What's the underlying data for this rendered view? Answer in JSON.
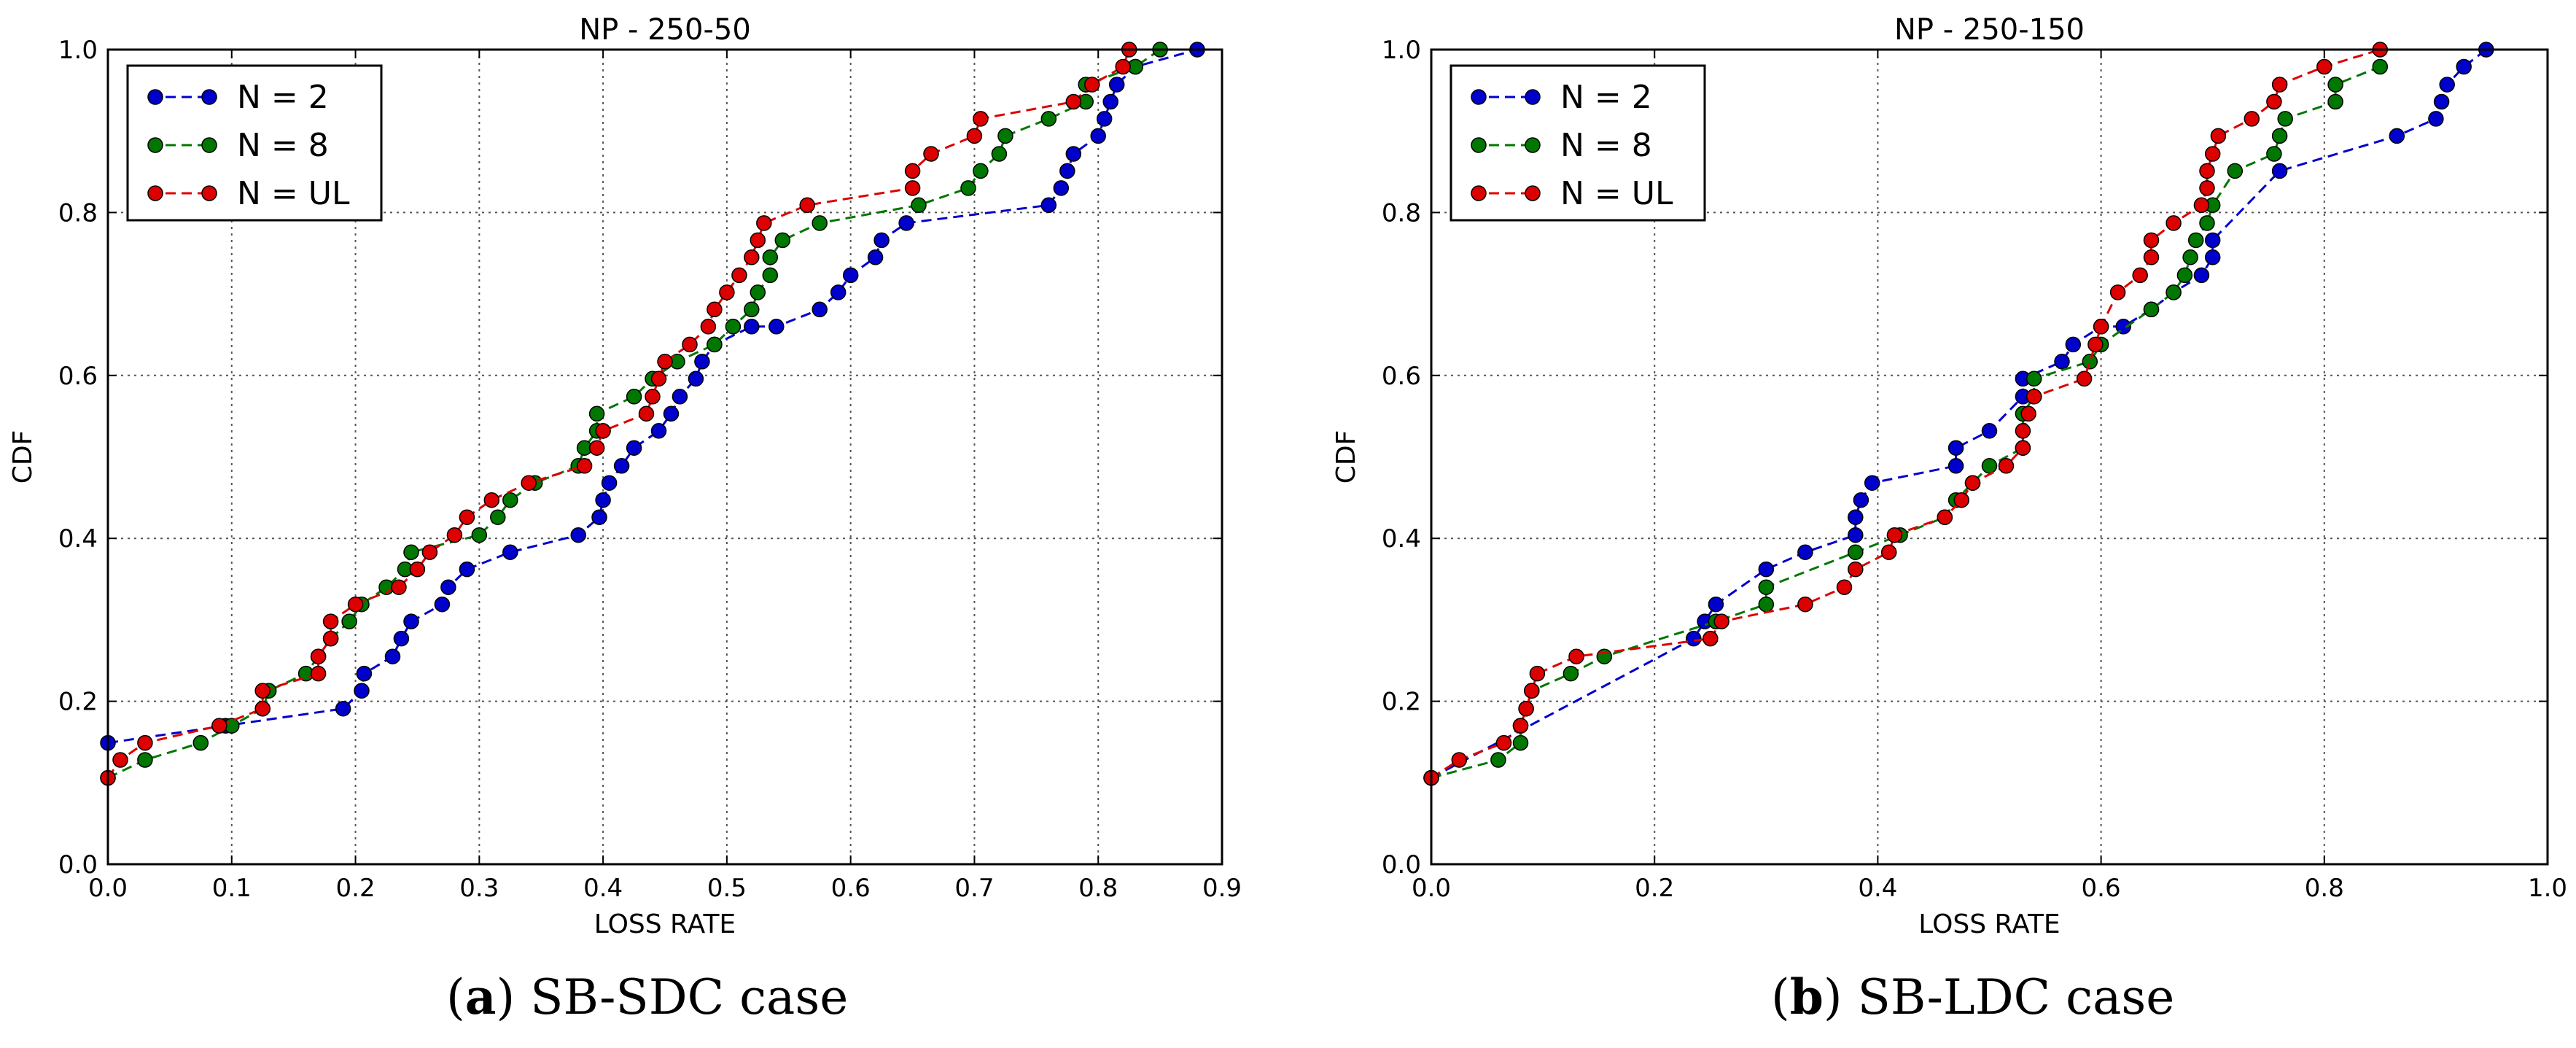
{
  "chart_data": [
    {
      "type": "line",
      "title": "NP - 250-50",
      "xlabel": "LOSS RATE",
      "ylabel": "CDF",
      "xlim": [
        0,
        0.9
      ],
      "ylim": [
        0,
        1.0
      ],
      "xticks": [
        0,
        0.1,
        0.2,
        0.3,
        0.4,
        0.5,
        0.6,
        0.7,
        0.8,
        0.9
      ],
      "yticks": [
        0,
        0.2,
        0.4,
        0.6,
        0.8,
        1.0
      ],
      "xtick_labels": [
        "0.0",
        "0.1",
        "0.2",
        "0.3",
        "0.4",
        "0.5",
        "0.6",
        "0.7",
        "0.8",
        "0.9"
      ],
      "ytick_labels": [
        "0.0",
        "0.2",
        "0.4",
        "0.6",
        "0.8",
        "1.0"
      ],
      "grid": true,
      "legend_position": "top-left",
      "caption_label": "(a)",
      "caption_text": "SB-SDC case",
      "series": [
        {
          "name": "N = 2",
          "color": "#0000cc",
          "points": [
            [
              0.0,
              0.149
            ],
            [
              0.095,
              0.17
            ],
            [
              0.19,
              0.191
            ],
            [
              0.205,
              0.213
            ],
            [
              0.207,
              0.234
            ],
            [
              0.23,
              0.255
            ],
            [
              0.237,
              0.277
            ],
            [
              0.245,
              0.298
            ],
            [
              0.27,
              0.319
            ],
            [
              0.275,
              0.34
            ],
            [
              0.29,
              0.362
            ],
            [
              0.325,
              0.383
            ],
            [
              0.38,
              0.404
            ],
            [
              0.397,
              0.426
            ],
            [
              0.4,
              0.447
            ],
            [
              0.405,
              0.468
            ],
            [
              0.415,
              0.489
            ],
            [
              0.425,
              0.511
            ],
            [
              0.445,
              0.532
            ],
            [
              0.455,
              0.553
            ],
            [
              0.462,
              0.574
            ],
            [
              0.475,
              0.596
            ],
            [
              0.48,
              0.617
            ],
            [
              0.49,
              0.638
            ],
            [
              0.52,
              0.66
            ],
            [
              0.54,
              0.66
            ],
            [
              0.575,
              0.681
            ],
            [
              0.59,
              0.702
            ],
            [
              0.6,
              0.723
            ],
            [
              0.62,
              0.745
            ],
            [
              0.625,
              0.766
            ],
            [
              0.645,
              0.787
            ],
            [
              0.76,
              0.809
            ],
            [
              0.77,
              0.83
            ],
            [
              0.775,
              0.851
            ],
            [
              0.78,
              0.872
            ],
            [
              0.8,
              0.894
            ],
            [
              0.805,
              0.915
            ],
            [
              0.81,
              0.936
            ],
            [
              0.815,
              0.957
            ],
            [
              0.83,
              0.979
            ],
            [
              0.88,
              1.0
            ]
          ]
        },
        {
          "name": "N = 8",
          "color": "#007700",
          "points": [
            [
              0.0,
              0.106
            ],
            [
              0.03,
              0.128
            ],
            [
              0.075,
              0.149
            ],
            [
              0.1,
              0.17
            ],
            [
              0.125,
              0.191
            ],
            [
              0.13,
              0.213
            ],
            [
              0.16,
              0.234
            ],
            [
              0.17,
              0.255
            ],
            [
              0.18,
              0.277
            ],
            [
              0.195,
              0.298
            ],
            [
              0.205,
              0.319
            ],
            [
              0.225,
              0.34
            ],
            [
              0.24,
              0.362
            ],
            [
              0.245,
              0.383
            ],
            [
              0.3,
              0.404
            ],
            [
              0.315,
              0.426
            ],
            [
              0.325,
              0.447
            ],
            [
              0.345,
              0.468
            ],
            [
              0.38,
              0.489
            ],
            [
              0.385,
              0.511
            ],
            [
              0.395,
              0.532
            ],
            [
              0.395,
              0.553
            ],
            [
              0.425,
              0.574
            ],
            [
              0.44,
              0.596
            ],
            [
              0.46,
              0.617
            ],
            [
              0.49,
              0.638
            ],
            [
              0.505,
              0.66
            ],
            [
              0.52,
              0.681
            ],
            [
              0.525,
              0.702
            ],
            [
              0.535,
              0.723
            ],
            [
              0.535,
              0.745
            ],
            [
              0.545,
              0.766
            ],
            [
              0.575,
              0.787
            ],
            [
              0.655,
              0.809
            ],
            [
              0.695,
              0.83
            ],
            [
              0.705,
              0.851
            ],
            [
              0.72,
              0.872
            ],
            [
              0.725,
              0.894
            ],
            [
              0.76,
              0.915
            ],
            [
              0.79,
              0.936
            ],
            [
              0.79,
              0.957
            ],
            [
              0.83,
              0.979
            ],
            [
              0.85,
              1.0
            ]
          ]
        },
        {
          "name": "N = UL",
          "color": "#dd0000",
          "points": [
            [
              0.0,
              0.106
            ],
            [
              0.01,
              0.128
            ],
            [
              0.03,
              0.149
            ],
            [
              0.09,
              0.17
            ],
            [
              0.125,
              0.191
            ],
            [
              0.125,
              0.213
            ],
            [
              0.17,
              0.234
            ],
            [
              0.17,
              0.255
            ],
            [
              0.18,
              0.277
            ],
            [
              0.18,
              0.298
            ],
            [
              0.2,
              0.319
            ],
            [
              0.235,
              0.34
            ],
            [
              0.25,
              0.362
            ],
            [
              0.26,
              0.383
            ],
            [
              0.28,
              0.404
            ],
            [
              0.29,
              0.426
            ],
            [
              0.31,
              0.447
            ],
            [
              0.34,
              0.468
            ],
            [
              0.385,
              0.489
            ],
            [
              0.395,
              0.511
            ],
            [
              0.4,
              0.532
            ],
            [
              0.435,
              0.553
            ],
            [
              0.44,
              0.574
            ],
            [
              0.445,
              0.596
            ],
            [
              0.45,
              0.617
            ],
            [
              0.47,
              0.638
            ],
            [
              0.485,
              0.66
            ],
            [
              0.49,
              0.681
            ],
            [
              0.5,
              0.702
            ],
            [
              0.51,
              0.723
            ],
            [
              0.52,
              0.745
            ],
            [
              0.525,
              0.766
            ],
            [
              0.53,
              0.787
            ],
            [
              0.565,
              0.809
            ],
            [
              0.65,
              0.83
            ],
            [
              0.65,
              0.851
            ],
            [
              0.665,
              0.872
            ],
            [
              0.7,
              0.894
            ],
            [
              0.705,
              0.915
            ],
            [
              0.78,
              0.936
            ],
            [
              0.795,
              0.957
            ],
            [
              0.82,
              0.979
            ],
            [
              0.825,
              1.0
            ]
          ]
        }
      ]
    },
    {
      "type": "line",
      "title": "NP - 250-150",
      "xlabel": "LOSS RATE",
      "ylabel": "CDF",
      "xlim": [
        0,
        1.0
      ],
      "ylim": [
        0,
        1.0
      ],
      "xticks": [
        0,
        0.2,
        0.4,
        0.6,
        0.8,
        1.0
      ],
      "yticks": [
        0,
        0.2,
        0.4,
        0.6,
        0.8,
        1.0
      ],
      "xtick_labels": [
        "0.0",
        "0.2",
        "0.4",
        "0.6",
        "0.8",
        "1.0"
      ],
      "ytick_labels": [
        "0.0",
        "0.2",
        "0.4",
        "0.6",
        "0.8",
        "1.0"
      ],
      "grid": true,
      "legend_position": "top-left",
      "caption_label": "(b)",
      "caption_text": "SB-LDC case",
      "series": [
        {
          "name": "N = 2",
          "color": "#0000cc",
          "points": [
            [
              0.0,
              0.106
            ],
            [
              0.235,
              0.277
            ],
            [
              0.245,
              0.298
            ],
            [
              0.255,
              0.319
            ],
            [
              0.3,
              0.362
            ],
            [
              0.335,
              0.383
            ],
            [
              0.38,
              0.404
            ],
            [
              0.38,
              0.426
            ],
            [
              0.385,
              0.447
            ],
            [
              0.395,
              0.468
            ],
            [
              0.47,
              0.489
            ],
            [
              0.47,
              0.511
            ],
            [
              0.5,
              0.532
            ],
            [
              0.53,
              0.574
            ],
            [
              0.53,
              0.596
            ],
            [
              0.565,
              0.617
            ],
            [
              0.575,
              0.638
            ],
            [
              0.6,
              0.66
            ],
            [
              0.62,
              0.66
            ],
            [
              0.645,
              0.681
            ],
            [
              0.665,
              0.702
            ],
            [
              0.69,
              0.723
            ],
            [
              0.7,
              0.745
            ],
            [
              0.7,
              0.766
            ],
            [
              0.76,
              0.851
            ],
            [
              0.865,
              0.894
            ],
            [
              0.9,
              0.915
            ],
            [
              0.905,
              0.936
            ],
            [
              0.91,
              0.957
            ],
            [
              0.925,
              0.979
            ],
            [
              0.945,
              1.0
            ]
          ]
        },
        {
          "name": "N = 8",
          "color": "#007700",
          "points": [
            [
              0.0,
              0.106
            ],
            [
              0.06,
              0.128
            ],
            [
              0.08,
              0.149
            ],
            [
              0.08,
              0.17
            ],
            [
              0.085,
              0.191
            ],
            [
              0.09,
              0.213
            ],
            [
              0.125,
              0.234
            ],
            [
              0.155,
              0.255
            ],
            [
              0.255,
              0.298
            ],
            [
              0.3,
              0.319
            ],
            [
              0.3,
              0.34
            ],
            [
              0.38,
              0.383
            ],
            [
              0.42,
              0.404
            ],
            [
              0.46,
              0.426
            ],
            [
              0.47,
              0.447
            ],
            [
              0.485,
              0.468
            ],
            [
              0.5,
              0.489
            ],
            [
              0.53,
              0.511
            ],
            [
              0.53,
              0.553
            ],
            [
              0.54,
              0.574
            ],
            [
              0.54,
              0.596
            ],
            [
              0.59,
              0.617
            ],
            [
              0.6,
              0.638
            ],
            [
              0.645,
              0.681
            ],
            [
              0.665,
              0.702
            ],
            [
              0.675,
              0.723
            ],
            [
              0.68,
              0.745
            ],
            [
              0.685,
              0.766
            ],
            [
              0.695,
              0.787
            ],
            [
              0.7,
              0.809
            ],
            [
              0.72,
              0.851
            ],
            [
              0.755,
              0.872
            ],
            [
              0.76,
              0.894
            ],
            [
              0.765,
              0.915
            ],
            [
              0.81,
              0.936
            ],
            [
              0.81,
              0.957
            ],
            [
              0.85,
              0.979
            ]
          ]
        },
        {
          "name": "N = UL",
          "color": "#dd0000",
          "points": [
            [
              0.0,
              0.106
            ],
            [
              0.025,
              0.128
            ],
            [
              0.065,
              0.149
            ],
            [
              0.08,
              0.17
            ],
            [
              0.085,
              0.191
            ],
            [
              0.09,
              0.213
            ],
            [
              0.095,
              0.234
            ],
            [
              0.13,
              0.255
            ],
            [
              0.25,
              0.277
            ],
            [
              0.26,
              0.298
            ],
            [
              0.335,
              0.319
            ],
            [
              0.37,
              0.34
            ],
            [
              0.38,
              0.362
            ],
            [
              0.41,
              0.383
            ],
            [
              0.415,
              0.404
            ],
            [
              0.46,
              0.426
            ],
            [
              0.475,
              0.447
            ],
            [
              0.485,
              0.468
            ],
            [
              0.515,
              0.489
            ],
            [
              0.53,
              0.511
            ],
            [
              0.53,
              0.532
            ],
            [
              0.535,
              0.553
            ],
            [
              0.54,
              0.574
            ],
            [
              0.585,
              0.596
            ],
            [
              0.595,
              0.638
            ],
            [
              0.6,
              0.66
            ],
            [
              0.615,
              0.702
            ],
            [
              0.635,
              0.723
            ],
            [
              0.645,
              0.745
            ],
            [
              0.645,
              0.766
            ],
            [
              0.665,
              0.787
            ],
            [
              0.69,
              0.809
            ],
            [
              0.695,
              0.83
            ],
            [
              0.695,
              0.851
            ],
            [
              0.7,
              0.872
            ],
            [
              0.705,
              0.894
            ],
            [
              0.735,
              0.915
            ],
            [
              0.755,
              0.936
            ],
            [
              0.76,
              0.957
            ],
            [
              0.8,
              0.979
            ],
            [
              0.85,
              1.0
            ]
          ]
        }
      ]
    }
  ]
}
